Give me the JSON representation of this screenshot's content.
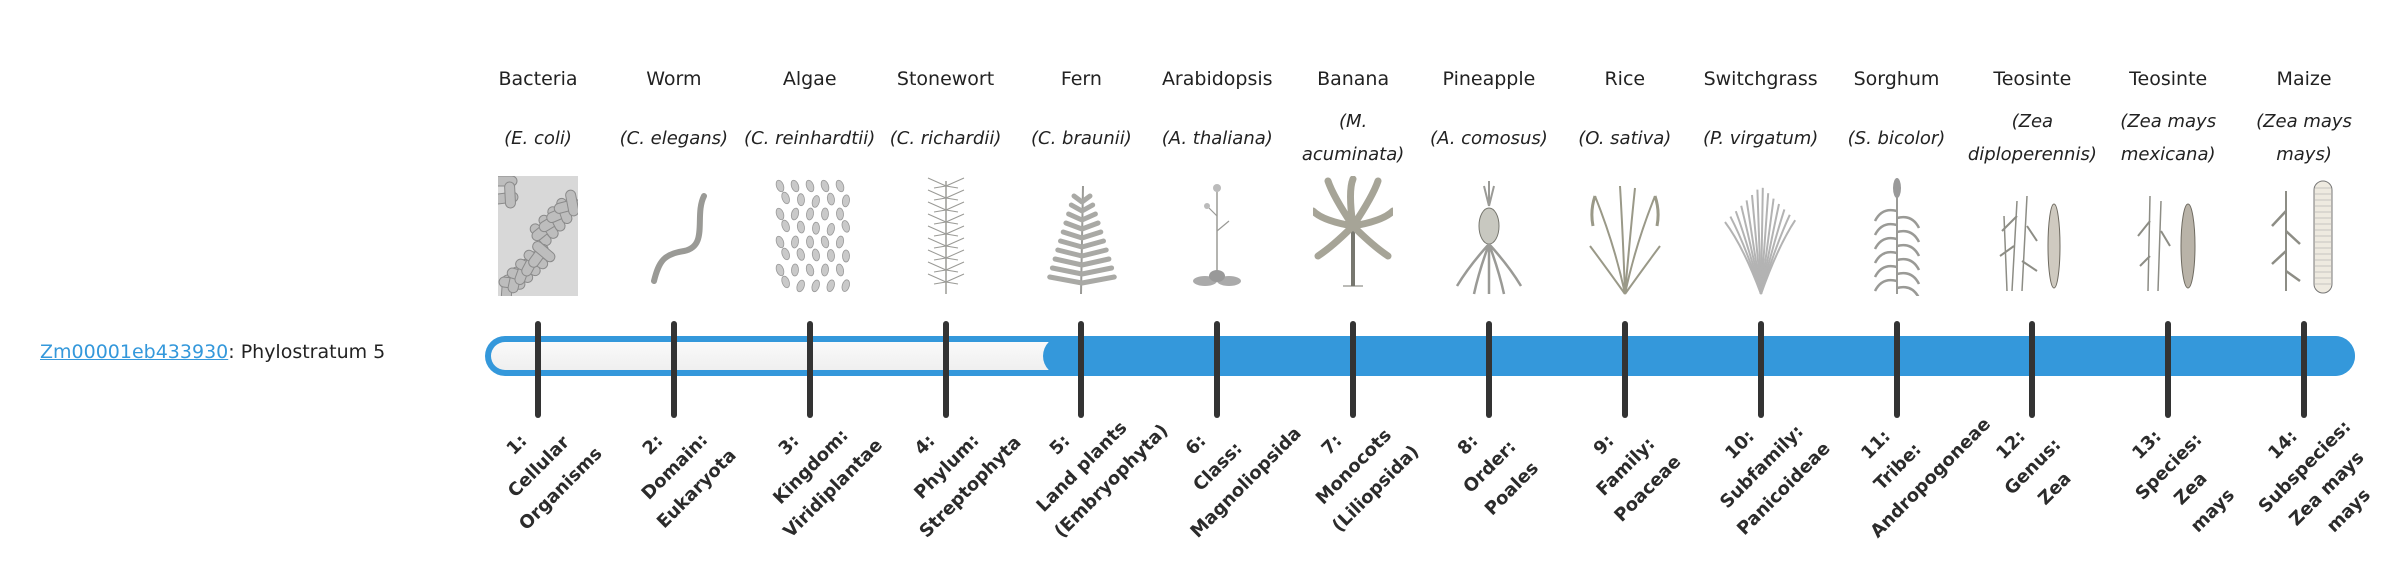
{
  "gene": {
    "id": "Zm00001eb433930",
    "suffix": ": Phylostratum 5",
    "phylostratum": 5
  },
  "colors": {
    "accent": "#3498db",
    "tick": "#333333",
    "track": "#f5f5f5"
  },
  "organisms": [
    {
      "common": "Bacteria",
      "scientific": "(E. coli)",
      "icon": "bacteria-icon",
      "stratum": [
        "1:",
        "Cellular",
        "Organisms"
      ]
    },
    {
      "common": "Worm",
      "scientific": "(C. elegans)",
      "icon": "worm-icon",
      "stratum": [
        "2:",
        "Domain:",
        "Eukaryota"
      ]
    },
    {
      "common": "Algae",
      "scientific": "(C. reinhardtii)",
      "icon": "algae-icon",
      "stratum": [
        "3:",
        "Kingdom:",
        "Viridiplantae"
      ]
    },
    {
      "common": "Stonewort",
      "scientific": "(C. richardii)",
      "icon": "stonewort-icon",
      "stratum": [
        "4:",
        "Phylum:",
        "Streptophyta"
      ]
    },
    {
      "common": "Fern",
      "scientific": "(C. braunii)",
      "icon": "fern-icon",
      "stratum": [
        "5:",
        "Land plants",
        "(Embryophyta)"
      ]
    },
    {
      "common": "Arabidopsis",
      "scientific": "(A. thaliana)",
      "icon": "arabidopsis-icon",
      "stratum": [
        "6:",
        "Class:",
        "Magnoliopsida"
      ]
    },
    {
      "common": "Banana",
      "scientific": "(M. acuminata)",
      "icon": "banana-plant-icon",
      "stratum": [
        "7:",
        "Monocots",
        "(Liliopsida)"
      ]
    },
    {
      "common": "Pineapple",
      "scientific": "(A. comosus)",
      "icon": "pineapple-icon",
      "stratum": [
        "8:",
        "Order:",
        "Poales"
      ]
    },
    {
      "common": "Rice",
      "scientific": "(O. sativa)",
      "icon": "rice-icon",
      "stratum": [
        "9:",
        "Family:",
        "Poaceae"
      ]
    },
    {
      "common": "Switchgrass",
      "scientific": "(P. virgatum)",
      "icon": "switchgrass-icon",
      "stratum": [
        "10:",
        "Subfamily:",
        "Panicoideae"
      ]
    },
    {
      "common": "Sorghum",
      "scientific": "(S. bicolor)",
      "icon": "sorghum-icon",
      "stratum": [
        "11:",
        "Tribe:",
        "Andropogoneae"
      ]
    },
    {
      "common": "Teosinte",
      "scientific": "(Zea diploperennis)",
      "icon": "teosinte-icon",
      "stratum": [
        "12:",
        "Genus:",
        "Zea"
      ]
    },
    {
      "common": "Teosinte",
      "scientific": "(Zea mays mexicana)",
      "icon": "teosinte-mexicana-icon",
      "stratum": [
        "13:",
        "Species:",
        "Zea",
        "mays"
      ]
    },
    {
      "common": "Maize",
      "scientific": "(Zea mays mays)",
      "icon": "maize-icon",
      "stratum": [
        "14:",
        "Subspecies:",
        "Zea mays",
        "mays"
      ]
    }
  ]
}
